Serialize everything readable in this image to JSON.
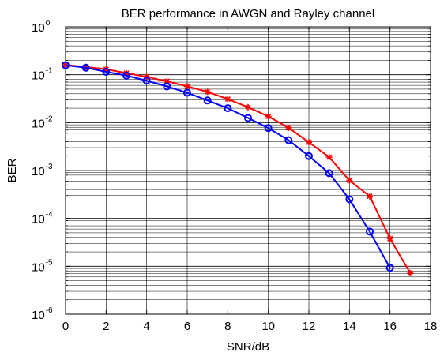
{
  "chart_data": {
    "type": "line",
    "title": "BER performance in AWGN and Rayley channel",
    "xlabel": "SNR/dB",
    "ylabel": "BER",
    "xlim": [
      0,
      18
    ],
    "ylim": [
      1e-06,
      1
    ],
    "y_scale": "log",
    "grid": true,
    "x_ticks": [
      0,
      2,
      4,
      6,
      8,
      10,
      12,
      14,
      16,
      18
    ],
    "x_tick_labels": [
      "0",
      "2",
      "4",
      "6",
      "8",
      "10",
      "12",
      "14",
      "16",
      "18"
    ],
    "y_ticks": [
      {
        "value": 1,
        "base": "10",
        "exp": "0"
      },
      {
        "value": 0.1,
        "base": "10",
        "exp": "-1"
      },
      {
        "value": 0.01,
        "base": "10",
        "exp": "-2"
      },
      {
        "value": 0.001,
        "base": "10",
        "exp": "-3"
      },
      {
        "value": 0.0001,
        "base": "10",
        "exp": "-4"
      },
      {
        "value": 1e-05,
        "base": "10",
        "exp": "-5"
      },
      {
        "value": 1e-06,
        "base": "10",
        "exp": "-6"
      }
    ],
    "series": [
      {
        "color": "#ff0000",
        "marker": "star",
        "x": [
          0,
          1,
          2,
          3,
          4,
          5,
          6,
          7,
          8,
          9,
          10,
          11,
          12,
          13,
          14,
          15,
          16,
          17
        ],
        "y": [
          0.16,
          0.145,
          0.13,
          0.108,
          0.09,
          0.073,
          0.057,
          0.044,
          0.031,
          0.021,
          0.0135,
          0.0078,
          0.0039,
          0.0019,
          0.00062,
          0.00029,
          3.8e-05,
          7.2e-06
        ]
      },
      {
        "color": "#0000ff",
        "marker": "circle",
        "x": [
          0,
          1,
          2,
          3,
          4,
          5,
          6,
          7,
          8,
          9,
          10,
          11,
          12,
          13,
          14,
          15,
          16
        ],
        "y": [
          0.158,
          0.14,
          0.115,
          0.096,
          0.075,
          0.057,
          0.042,
          0.029,
          0.02,
          0.0125,
          0.0077,
          0.0043,
          0.002,
          0.00088,
          0.00025,
          5.3e-05,
          9.3e-06
        ]
      }
    ]
  }
}
